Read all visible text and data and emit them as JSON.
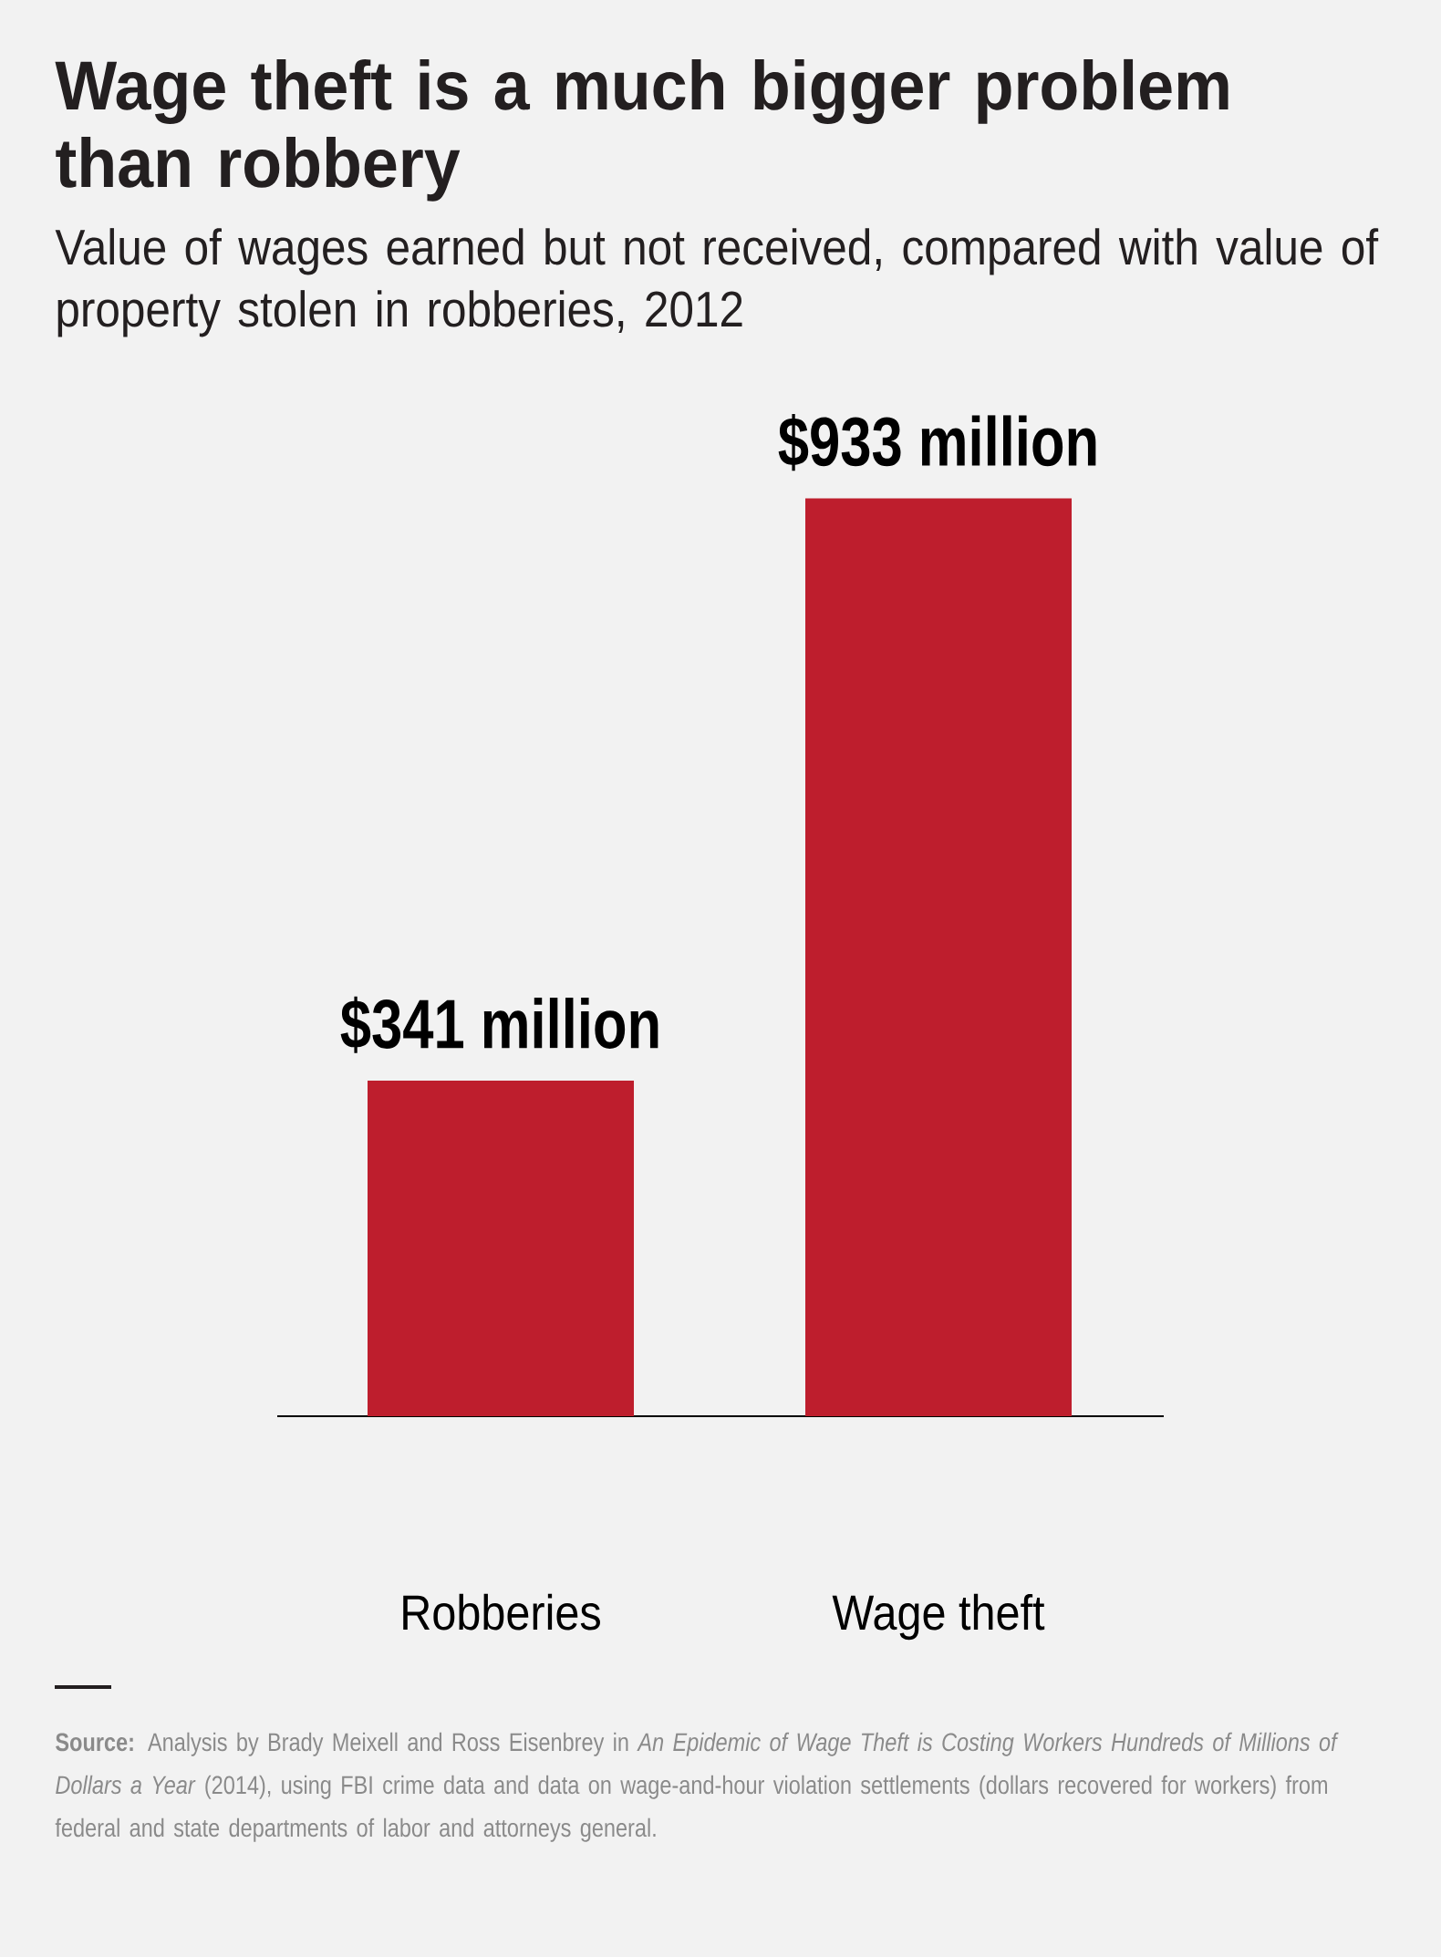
{
  "chart_data": {
    "type": "bar",
    "title": "Wage theft is a much bigger problem than robbery",
    "subtitle": "Value of wages earned but not received, compared with value of property stolen in robberies, 2012",
    "categories": [
      "Robberies",
      "Wage theft"
    ],
    "values": [
      341,
      933
    ],
    "value_labels": [
      "$341 million",
      "$933 million"
    ],
    "color": "#be1e2d",
    "tick_labels": "x",
    "annotations": [
      "**Source:** Analysis by Brady Meixell and Ross Eisenbrey in *An Epidemic of Wage Theft is Costing Workers Hundreds of Millions of Dollars a Year* (2014), using FBI crime data and data on wage-and-hour violation settlements (dollars recovered for workers) from federal and state departments of labor and attorneys general."
    ]
  }
}
